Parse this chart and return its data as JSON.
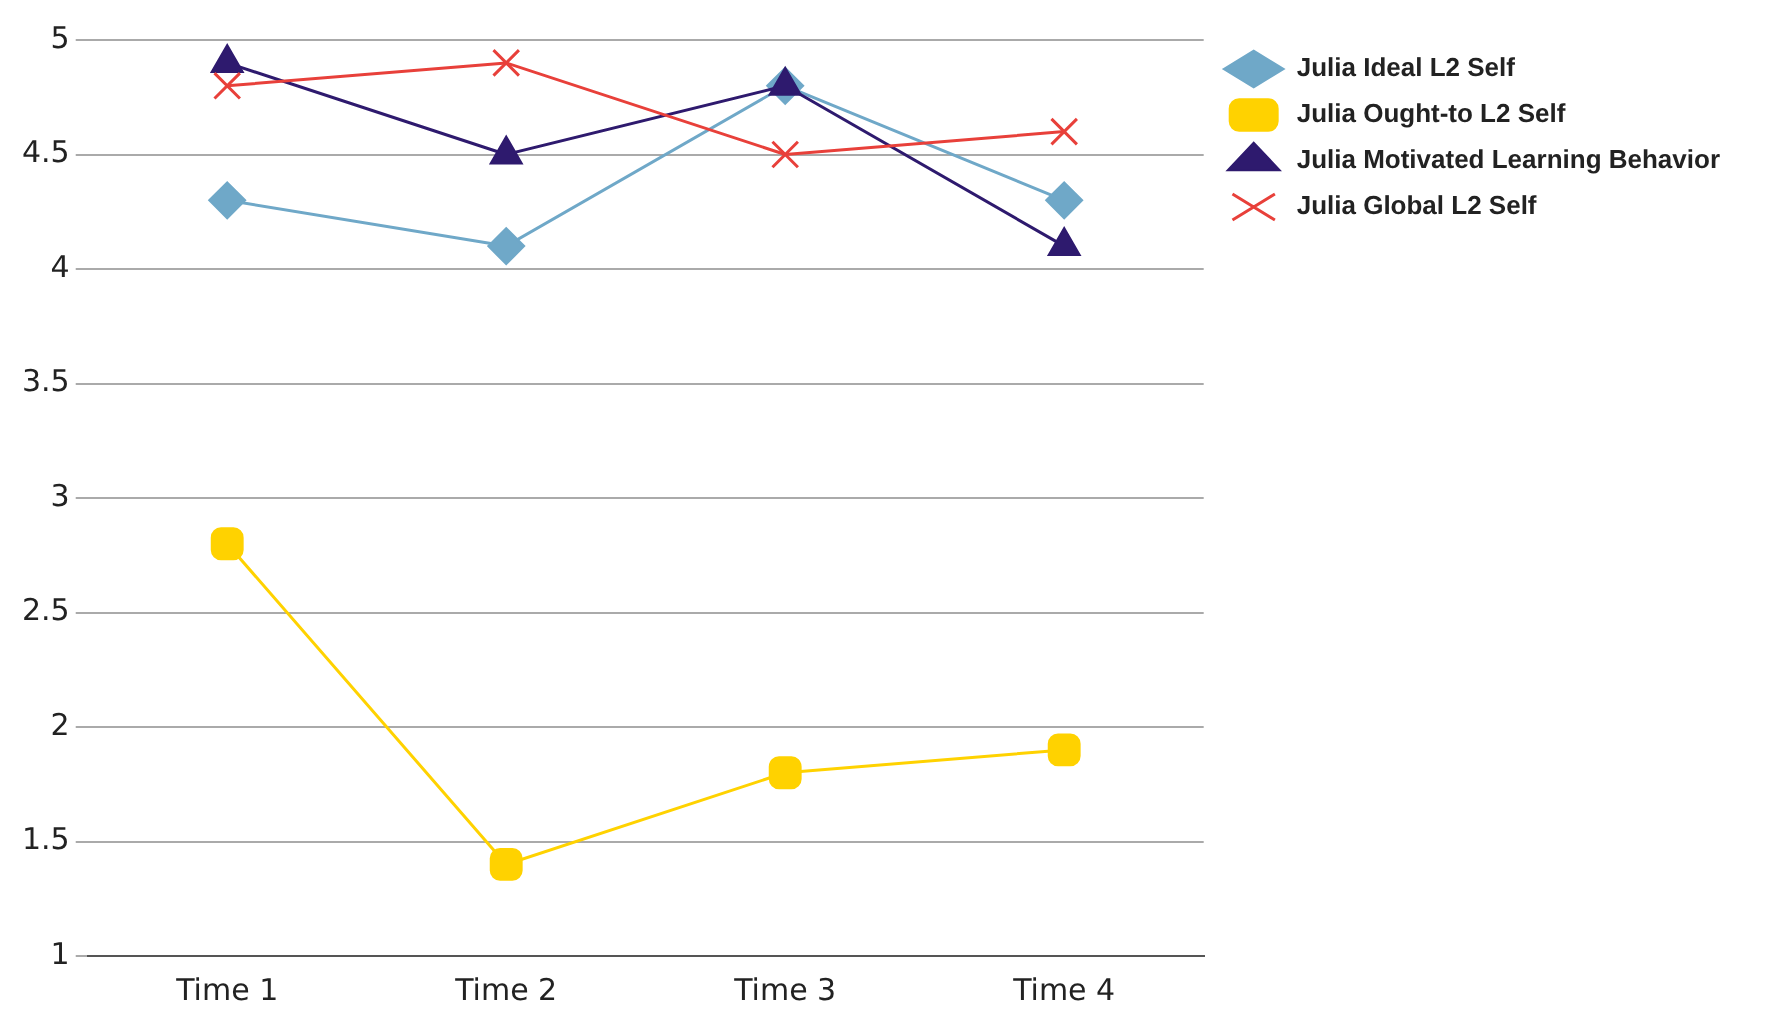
{
  "chart_data": {
    "type": "line",
    "categories": [
      "Time 1",
      "Time 2",
      "Time 3",
      "Time 4"
    ],
    "series": [
      {
        "name": "Julia Ideal L2 Self",
        "color": "#6fa8c8",
        "marker": "diamond",
        "values": [
          4.3,
          4.1,
          4.8,
          4.3
        ]
      },
      {
        "name": "Julia Ought-to L2 Self",
        "color": "#ffd200",
        "marker": "square",
        "values": [
          2.8,
          1.4,
          1.8,
          1.9
        ]
      },
      {
        "name": "Julia Motivated Learning Behavior",
        "color": "#2e1a6e",
        "marker": "triangle",
        "values": [
          4.9,
          4.5,
          4.8,
          4.1
        ]
      },
      {
        "name": "Julia Global L2 Self",
        "color": "#e8403a",
        "marker": "cross",
        "values": [
          4.8,
          4.9,
          4.5,
          4.6
        ]
      }
    ],
    "ylim": [
      1,
      5
    ],
    "yticks": [
      1,
      1.5,
      2,
      2.5,
      3,
      3.5,
      4,
      4.5,
      5
    ],
    "grid": "y",
    "legend": "top right"
  }
}
